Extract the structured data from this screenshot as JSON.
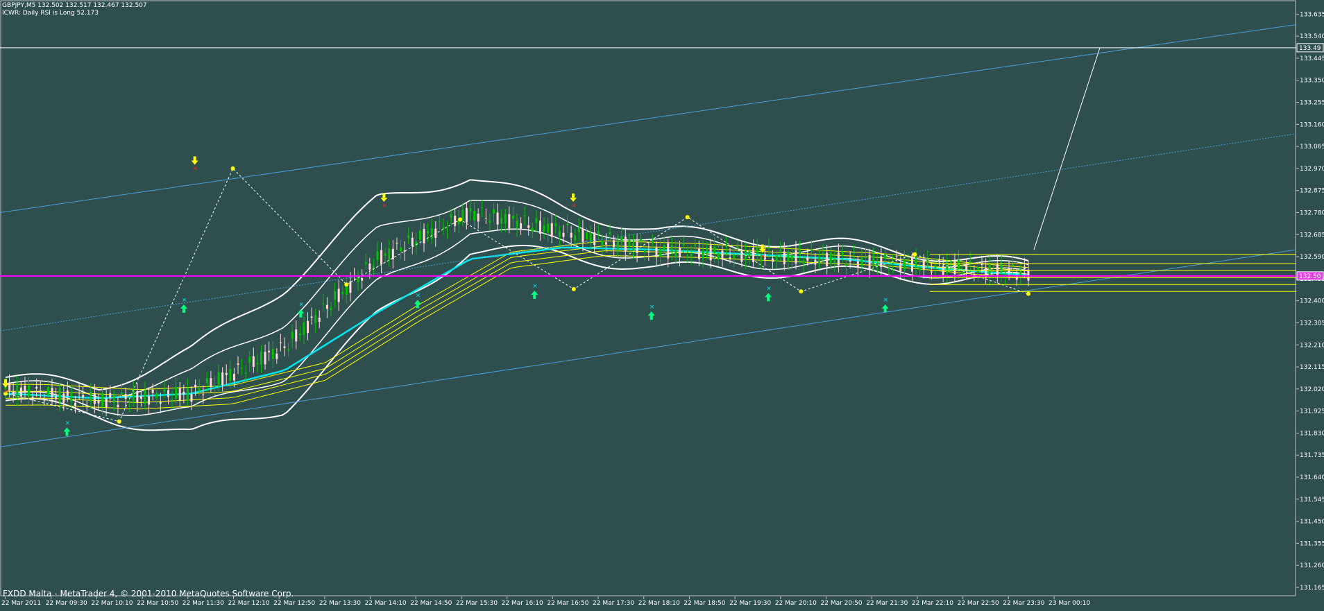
{
  "header": {
    "symbol_line": "GBPJPY,M5  132.502 132.517 132.467 132.507",
    "indicator_line": "ICWR: Daily RSI is Long 52.173"
  },
  "footer": {
    "platform_text": "FXDD Malta - MetaTrader 4, © 2001-2010 MetaQuotes Software Corp."
  },
  "colors": {
    "background": "#2F4F4F",
    "axis_text": "#FFFFFF",
    "bull_candle": "#00C000",
    "bear_candle": "#FFD8D8",
    "bollinger": "#FFFFFF",
    "moving_average_fast": "#00E5EE",
    "moving_average_slow": "#FFFF00",
    "channel": "#4A9ED8",
    "horizontal_level": "#FF00FF",
    "price_label_bg": "#E040E0",
    "zigzag": "#FFFFFF",
    "up_arrow": "#00FF7F",
    "down_arrow": "#FFFF00",
    "pivot_dot": "#FFFF00",
    "cross_marker": "#00E5EE",
    "red_marker": "#FF2020"
  },
  "chart_data": {
    "type": "candlestick",
    "symbol": "GBPJPY",
    "timeframe": "M5",
    "ylim": [
      131.165,
      133.63
    ],
    "y_ticks": [
      "133.635",
      "133.540",
      "133.445",
      "133.350",
      "133.255",
      "133.160",
      "133.065",
      "132.970",
      "132.875",
      "132.780",
      "132.685",
      "132.590",
      "132.495",
      "132.400",
      "132.305",
      "132.210",
      "132.115",
      "132.020",
      "131.925",
      "131.830",
      "131.735",
      "131.640",
      "131.545",
      "131.450",
      "131.355",
      "131.260",
      "131.165"
    ],
    "x_ticks": [
      "22 Mar 2011",
      "22 Mar 09:30",
      "22 Mar 10:10",
      "22 Mar 10:50",
      "22 Mar 11:30",
      "22 Mar 12:10",
      "22 Mar 12:50",
      "22 Mar 13:30",
      "22 Mar 14:10",
      "22 Mar 14:50",
      "22 Mar 15:30",
      "22 Mar 16:10",
      "22 Mar 16:50",
      "22 Mar 17:30",
      "22 Mar 18:10",
      "22 Mar 18:50",
      "22 Mar 19:30",
      "22 Mar 20:10",
      "22 Mar 20:50",
      "22 Mar 21:30",
      "22 Mar 22:10",
      "22 Mar 22:50",
      "22 Mar 23:30",
      "23 Mar 00:10"
    ],
    "price_labels": {
      "line_level": "133.49",
      "current_price": "132.50"
    },
    "horizontal_line": 133.49,
    "current_level": 132.507,
    "zigzag_pivots": [
      132.0,
      131.88,
      132.97,
      132.47,
      132.75,
      132.45,
      132.76,
      132.44,
      132.6,
      132.43
    ],
    "down_arrow_prices": [
      132.05,
      133.01,
      132.85,
      132.85,
      132.63
    ],
    "up_arrow_prices": [
      131.83,
      132.36,
      132.34,
      132.38,
      132.42,
      132.33,
      132.41,
      132.36
    ],
    "bollinger_mid_path": [
      132.02,
      131.97,
      132.0,
      132.2,
      132.58,
      132.78,
      132.7,
      132.62,
      132.6,
      132.58,
      132.55,
      132.52
    ],
    "ma_fast_path": [
      132.0,
      131.98,
      132.0,
      132.1,
      132.35,
      132.58,
      132.63,
      132.62,
      132.6,
      132.58,
      132.54,
      132.51
    ]
  }
}
